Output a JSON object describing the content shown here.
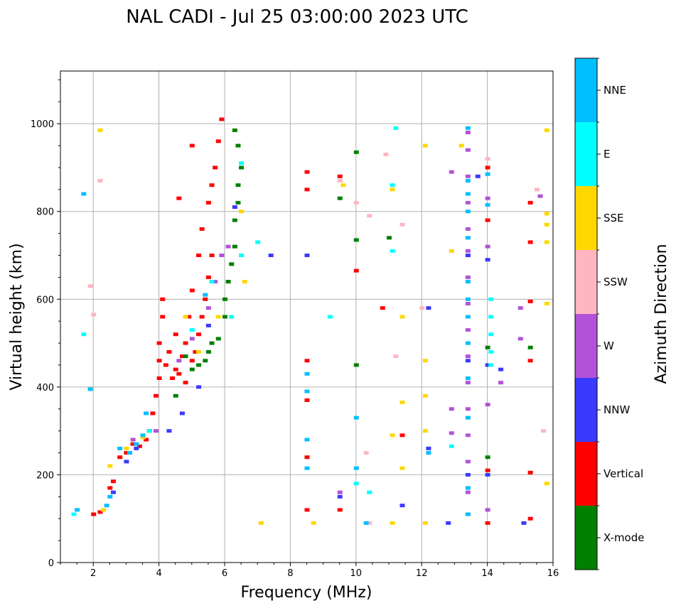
{
  "chart_data": {
    "type": "scatter",
    "title": "NAL CADI - Jul 25 03:00:00 2023 UTC",
    "xlabel": "Frequency (MHz)",
    "ylabel": "Virtual height (km)",
    "xlim": [
      1,
      16
    ],
    "ylim": [
      0,
      1120
    ],
    "xticks": [
      2,
      4,
      6,
      8,
      10,
      12,
      14,
      16
    ],
    "yticks": [
      0,
      200,
      400,
      600,
      800,
      1000
    ],
    "grid": true,
    "colorbar": {
      "label": "Azimuth Direction",
      "categories": [
        {
          "name": "X-mode",
          "color": "#008000"
        },
        {
          "name": "Vertical",
          "color": "#ff0000"
        },
        {
          "name": "NNW",
          "color": "#3a3aff"
        },
        {
          "name": "W",
          "color": "#b252d8"
        },
        {
          "name": "SSW",
          "color": "#ffb6c1"
        },
        {
          "name": "SSE",
          "color": "#ffd700"
        },
        {
          "name": "E",
          "color": "#00ffff"
        },
        {
          "name": "NNE",
          "color": "#00bfff"
        }
      ]
    },
    "series": [
      {
        "name": "Vertical",
        "points": [
          [
            2,
            110
          ],
          [
            2.2,
            115
          ],
          [
            2.5,
            170
          ],
          [
            2.6,
            185
          ],
          [
            2.8,
            240
          ],
          [
            3,
            250
          ],
          [
            3.2,
            270
          ],
          [
            3.4,
            265
          ],
          [
            3.6,
            280
          ],
          [
            3.7,
            300
          ],
          [
            3.8,
            340
          ],
          [
            3.9,
            380
          ],
          [
            4,
            420
          ],
          [
            4,
            460
          ],
          [
            4,
            500
          ],
          [
            4.1,
            560
          ],
          [
            4.1,
            600
          ],
          [
            4.2,
            450
          ],
          [
            4.3,
            480
          ],
          [
            4.4,
            420
          ],
          [
            4.5,
            440
          ],
          [
            4.5,
            520
          ],
          [
            4.6,
            430
          ],
          [
            4.7,
            470
          ],
          [
            4.8,
            410
          ],
          [
            4.8,
            500
          ],
          [
            4.9,
            560
          ],
          [
            5,
            460
          ],
          [
            5,
            620
          ],
          [
            5.1,
            480
          ],
          [
            5.2,
            520
          ],
          [
            5.2,
            700
          ],
          [
            5.3,
            560
          ],
          [
            5.3,
            760
          ],
          [
            5.4,
            600
          ],
          [
            5.5,
            650
          ],
          [
            5.5,
            820
          ],
          [
            5.6,
            700
          ],
          [
            5.6,
            860
          ],
          [
            5.7,
            900
          ],
          [
            5.8,
            960
          ],
          [
            5.9,
            1010
          ],
          [
            4.6,
            830
          ],
          [
            5,
            950
          ],
          [
            8.5,
            120
          ],
          [
            8.5,
            240
          ],
          [
            8.5,
            370
          ],
          [
            8.5,
            460
          ],
          [
            8.5,
            700
          ],
          [
            8.5,
            850
          ],
          [
            8.5,
            890
          ],
          [
            9.5,
            120
          ],
          [
            9.5,
            880
          ],
          [
            10,
            665
          ],
          [
            10.8,
            580
          ],
          [
            11.4,
            290
          ],
          [
            14,
            90
          ],
          [
            14,
            210
          ],
          [
            14,
            900
          ],
          [
            14,
            780
          ],
          [
            15.3,
            100
          ],
          [
            15.3,
            205
          ],
          [
            15.3,
            460
          ],
          [
            15.3,
            595
          ],
          [
            15.3,
            820
          ],
          [
            15.3,
            730
          ]
        ]
      },
      {
        "name": "X-mode",
        "points": [
          [
            4.5,
            380
          ],
          [
            4.8,
            470
          ],
          [
            5,
            440
          ],
          [
            5.2,
            450
          ],
          [
            5.4,
            460
          ],
          [
            5.5,
            480
          ],
          [
            5.6,
            500
          ],
          [
            5.8,
            510
          ],
          [
            6,
            560
          ],
          [
            6,
            600
          ],
          [
            6.1,
            640
          ],
          [
            6.2,
            680
          ],
          [
            6.3,
            720
          ],
          [
            6.3,
            780
          ],
          [
            6.4,
            820
          ],
          [
            6.4,
            860
          ],
          [
            6.5,
            900
          ],
          [
            6.4,
            950
          ],
          [
            6.3,
            985
          ],
          [
            9.5,
            830
          ],
          [
            10,
            935
          ],
          [
            10,
            735
          ],
          [
            10,
            450
          ],
          [
            11,
            740
          ],
          [
            14,
            240
          ],
          [
            14,
            490
          ],
          [
            15.3,
            490
          ]
        ]
      },
      {
        "name": "NNW",
        "points": [
          [
            2.6,
            160
          ],
          [
            3,
            230
          ],
          [
            3.3,
            260
          ],
          [
            4.3,
            300
          ],
          [
            4.7,
            340
          ],
          [
            5.2,
            400
          ],
          [
            5.5,
            540
          ],
          [
            6.3,
            810
          ],
          [
            7.4,
            700
          ],
          [
            8.5,
            700
          ],
          [
            9.5,
            150
          ],
          [
            11.4,
            130
          ],
          [
            12.2,
            580
          ],
          [
            12.2,
            260
          ],
          [
            12.8,
            90
          ],
          [
            13.4,
            200
          ],
          [
            13.4,
            460
          ],
          [
            13.4,
            700
          ],
          [
            13.7,
            880
          ],
          [
            14,
            200
          ],
          [
            14,
            450
          ],
          [
            14,
            690
          ],
          [
            14.4,
            440
          ],
          [
            15.1,
            90
          ]
        ]
      },
      {
        "name": "W",
        "points": [
          [
            3.2,
            280
          ],
          [
            3.9,
            300
          ],
          [
            4.6,
            460
          ],
          [
            5,
            510
          ],
          [
            5.5,
            580
          ],
          [
            5.7,
            640
          ],
          [
            5.9,
            700
          ],
          [
            6.1,
            720
          ],
          [
            9.5,
            160
          ],
          [
            12.9,
            295
          ],
          [
            12.9,
            350
          ],
          [
            12.9,
            890
          ],
          [
            13.4,
            110
          ],
          [
            13.4,
            160
          ],
          [
            13.4,
            230
          ],
          [
            13.4,
            290
          ],
          [
            13.4,
            350
          ],
          [
            13.4,
            410
          ],
          [
            13.4,
            470
          ],
          [
            13.4,
            530
          ],
          [
            13.4,
            590
          ],
          [
            13.4,
            650
          ],
          [
            13.4,
            710
          ],
          [
            13.4,
            760
          ],
          [
            13.4,
            820
          ],
          [
            13.4,
            880
          ],
          [
            13.4,
            940
          ],
          [
            13.4,
            980
          ],
          [
            14,
            120
          ],
          [
            14,
            360
          ],
          [
            14,
            720
          ],
          [
            14,
            830
          ],
          [
            14.4,
            410
          ],
          [
            15,
            510
          ],
          [
            15,
            580
          ],
          [
            15.6,
            835
          ]
        ]
      },
      {
        "name": "SSW",
        "points": [
          [
            1.9,
            630
          ],
          [
            2,
            565
          ],
          [
            2.2,
            870
          ],
          [
            9.5,
            870
          ],
          [
            10,
            820
          ],
          [
            10.3,
            250
          ],
          [
            10.4,
            90
          ],
          [
            10.4,
            790
          ],
          [
            10.9,
            930
          ],
          [
            11.2,
            470
          ],
          [
            11.4,
            770
          ],
          [
            12,
            580
          ],
          [
            14,
            920
          ],
          [
            15.5,
            850
          ],
          [
            15.7,
            300
          ]
        ]
      },
      {
        "name": "SSE",
        "points": [
          [
            2.2,
            985
          ],
          [
            2.3,
            120
          ],
          [
            2.5,
            220
          ],
          [
            3,
            260
          ],
          [
            3.5,
            285
          ],
          [
            4.8,
            560
          ],
          [
            5.2,
            480
          ],
          [
            5.8,
            560
          ],
          [
            6.5,
            800
          ],
          [
            6.6,
            640
          ],
          [
            7.1,
            90
          ],
          [
            8.7,
            90
          ],
          [
            9.6,
            860
          ],
          [
            11.1,
            90
          ],
          [
            11.1,
            290
          ],
          [
            11.1,
            850
          ],
          [
            11.4,
            215
          ],
          [
            11.4,
            365
          ],
          [
            11.4,
            560
          ],
          [
            12.1,
            90
          ],
          [
            12.1,
            300
          ],
          [
            12.1,
            380
          ],
          [
            12.1,
            460
          ],
          [
            12.1,
            950
          ],
          [
            12.9,
            710
          ],
          [
            13.2,
            950
          ],
          [
            15.8,
            180
          ],
          [
            15.8,
            590
          ],
          [
            15.8,
            730
          ],
          [
            15.8,
            770
          ],
          [
            15.8,
            795
          ],
          [
            15.8,
            985
          ]
        ]
      },
      {
        "name": "E",
        "points": [
          [
            1.4,
            110
          ],
          [
            1.7,
            520
          ],
          [
            3.7,
            300
          ],
          [
            5,
            530
          ],
          [
            5.6,
            640
          ],
          [
            6.2,
            560
          ],
          [
            6.5,
            700
          ],
          [
            6.5,
            910
          ],
          [
            7,
            730
          ],
          [
            9.2,
            560
          ],
          [
            10,
            180
          ],
          [
            10.4,
            160
          ],
          [
            11.1,
            710
          ],
          [
            11.1,
            860
          ],
          [
            11.2,
            990
          ],
          [
            12.9,
            265
          ],
          [
            14.1,
            450
          ],
          [
            14.1,
            480
          ],
          [
            14.1,
            520
          ],
          [
            14.1,
            560
          ],
          [
            14.1,
            600
          ]
        ]
      },
      {
        "name": "NNE",
        "points": [
          [
            1.5,
            120
          ],
          [
            1.7,
            840
          ],
          [
            1.9,
            395
          ],
          [
            2.4,
            130
          ],
          [
            2.5,
            150
          ],
          [
            2.8,
            260
          ],
          [
            3.1,
            250
          ],
          [
            3.3,
            270
          ],
          [
            3.5,
            290
          ],
          [
            3.6,
            340
          ],
          [
            5.4,
            610
          ],
          [
            8.5,
            215
          ],
          [
            8.5,
            280
          ],
          [
            8.5,
            390
          ],
          [
            8.5,
            430
          ],
          [
            10,
            330
          ],
          [
            10,
            215
          ],
          [
            10.3,
            90
          ],
          [
            12.2,
            250
          ],
          [
            13.4,
            110
          ],
          [
            13.4,
            170
          ],
          [
            13.4,
            330
          ],
          [
            13.4,
            420
          ],
          [
            13.4,
            500
          ],
          [
            13.4,
            560
          ],
          [
            13.4,
            600
          ],
          [
            13.4,
            640
          ],
          [
            13.4,
            740
          ],
          [
            13.4,
            800
          ],
          [
            13.4,
            840
          ],
          [
            13.4,
            870
          ],
          [
            13.4,
            990
          ],
          [
            14,
            885
          ],
          [
            14,
            815
          ]
        ]
      }
    ]
  }
}
